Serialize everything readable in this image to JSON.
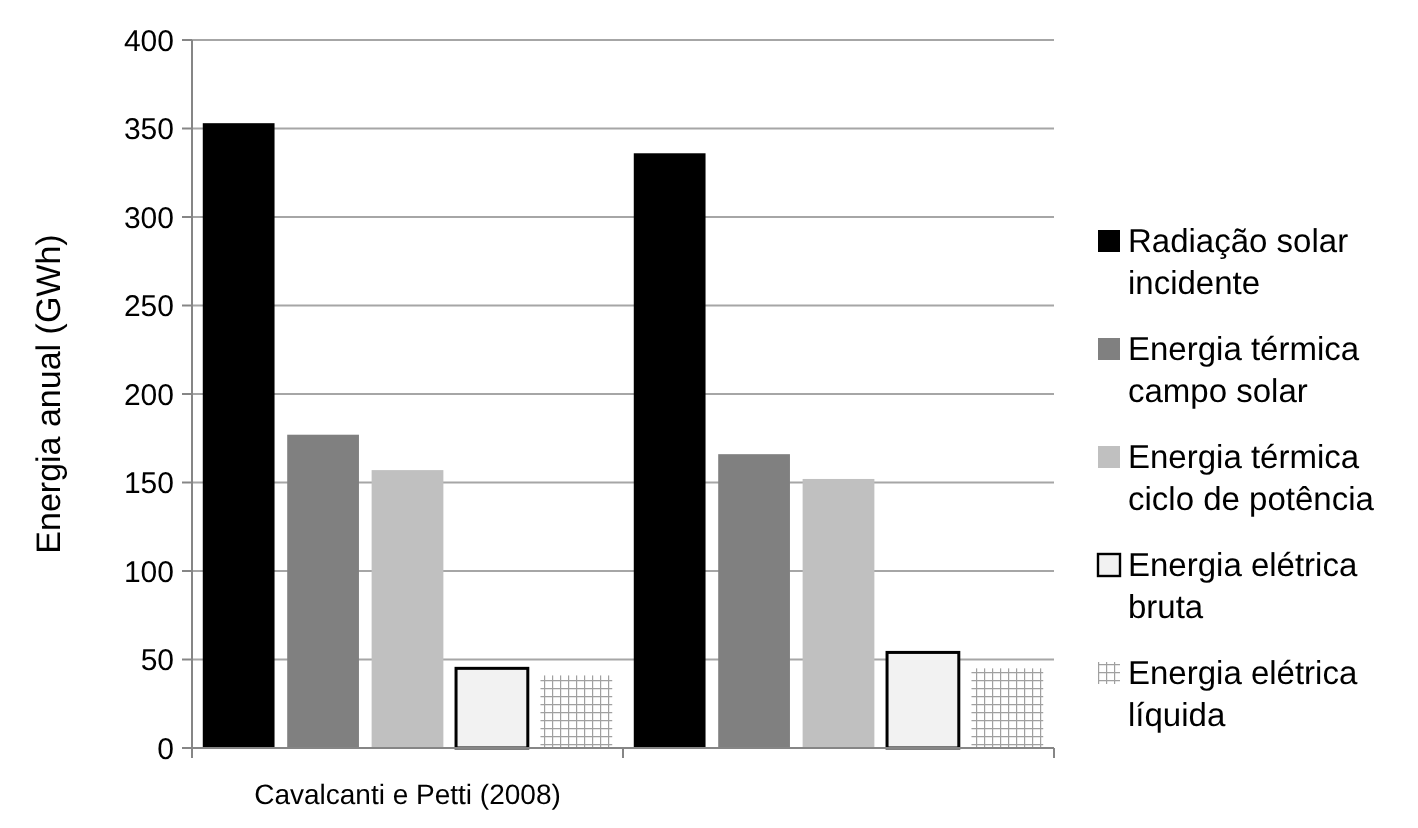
{
  "chart_data": {
    "type": "bar",
    "ylabel": "Energia anual (GWh)",
    "categories": [
      "Cavalcanti e Petti (2008)",
      null
    ],
    "series": [
      {
        "name": "Radiação solar incidente",
        "color": "#000000",
        "values": [
          353,
          336
        ]
      },
      {
        "name": "Energia térmica campo solar",
        "color": "#808080",
        "values": [
          177,
          166
        ]
      },
      {
        "name": "Energia térmica ciclo de potência",
        "color": "#c0c0c0",
        "values": [
          157,
          152
        ]
      },
      {
        "name": "Energia elétrica bruta",
        "color": "#f2f2f2",
        "values": [
          45,
          54
        ]
      },
      {
        "name": "Energia elétrica líquida",
        "color": "#a0a0a0",
        "values": [
          41,
          45
        ]
      }
    ],
    "ylim": [
      0,
      400
    ],
    "yticks": [
      0,
      50,
      100,
      150,
      200,
      250,
      300,
      350,
      400
    ],
    "grid": "y",
    "legend": "right"
  }
}
